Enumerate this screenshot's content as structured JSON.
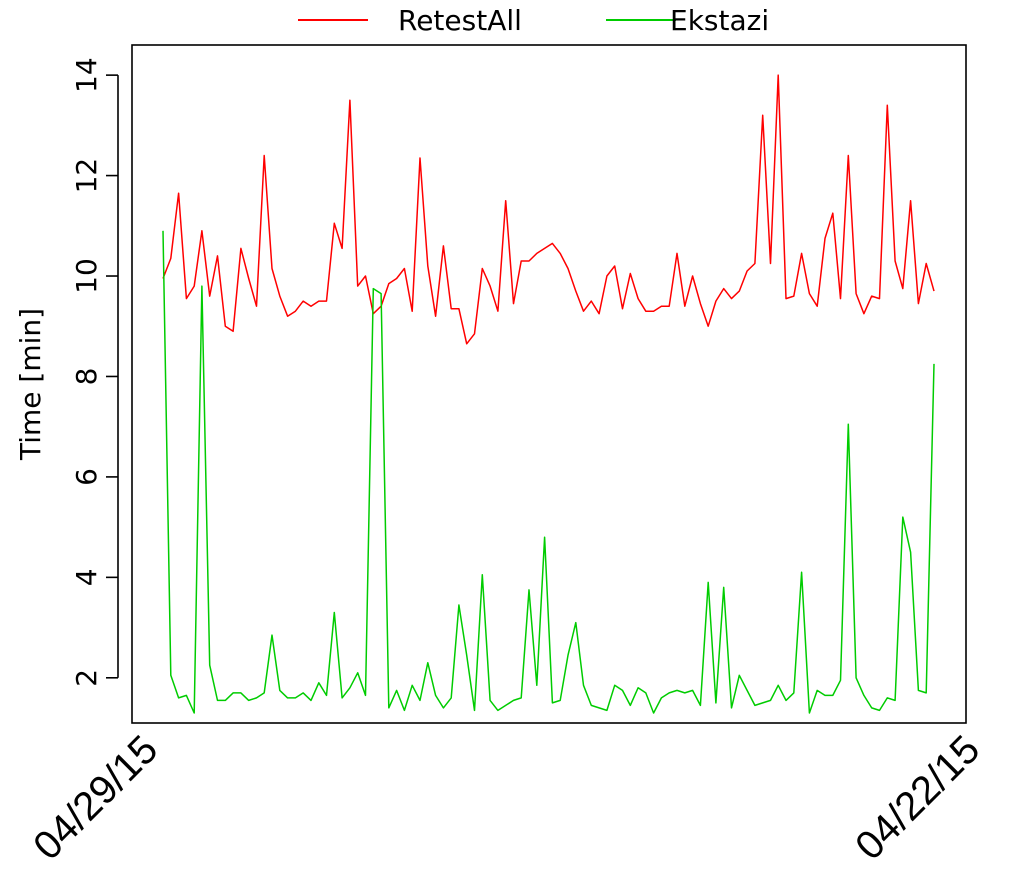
{
  "chart_data": {
    "type": "line",
    "title": "",
    "xlabel": "",
    "ylabel": "Time [min]",
    "x_tick_labels": [
      "04/29/15",
      "04/22/15"
    ],
    "ylim": [
      1.1,
      14.6
    ],
    "y_ticks": [
      2,
      4,
      6,
      8,
      10,
      12,
      14
    ],
    "grid": false,
    "legend_position": "top",
    "series": [
      {
        "name": "RetestAll",
        "color": "#ff0000",
        "values": [
          9.95,
          10.35,
          11.65,
          9.55,
          9.8,
          10.9,
          9.6,
          10.4,
          9.0,
          8.9,
          10.55,
          9.95,
          9.4,
          12.4,
          10.15,
          9.6,
          9.2,
          9.3,
          9.5,
          9.4,
          9.5,
          9.5,
          11.05,
          10.55,
          13.5,
          9.8,
          10.0,
          9.25,
          9.4,
          9.85,
          9.95,
          10.15,
          9.3,
          12.35,
          10.2,
          9.2,
          10.6,
          9.35,
          9.35,
          8.65,
          8.85,
          10.15,
          9.8,
          9.3,
          11.5,
          9.45,
          10.3,
          10.3,
          10.45,
          10.55,
          10.65,
          10.45,
          10.15,
          9.7,
          9.3,
          9.5,
          9.25,
          10.0,
          10.2,
          9.35,
          10.05,
          9.55,
          9.3,
          9.3,
          9.4,
          9.4,
          10.45,
          9.4,
          10.0,
          9.45,
          9.0,
          9.5,
          9.75,
          9.55,
          9.7,
          10.1,
          10.25,
          13.2,
          10.25,
          14.0,
          9.55,
          9.6,
          10.45,
          9.65,
          9.4,
          10.75,
          11.25,
          9.55,
          12.4,
          9.65,
          9.25,
          9.6,
          9.55,
          13.4,
          10.3,
          9.75,
          11.5,
          9.45,
          10.25,
          9.7
        ]
      },
      {
        "name": "Ekstazi",
        "color": "#00cc00",
        "values": [
          10.9,
          2.05,
          1.6,
          1.65,
          1.3,
          9.8,
          2.25,
          1.55,
          1.55,
          1.7,
          1.7,
          1.55,
          1.6,
          1.7,
          2.85,
          1.75,
          1.6,
          1.6,
          1.7,
          1.55,
          1.9,
          1.65,
          3.3,
          1.6,
          1.8,
          2.1,
          1.65,
          9.75,
          9.65,
          1.4,
          1.75,
          1.35,
          1.85,
          1.55,
          2.3,
          1.65,
          1.4,
          1.6,
          3.45,
          2.45,
          1.35,
          4.05,
          1.55,
          1.35,
          1.45,
          1.55,
          1.6,
          3.75,
          1.85,
          4.8,
          1.5,
          1.55,
          2.45,
          3.1,
          1.85,
          1.45,
          1.4,
          1.35,
          1.85,
          1.75,
          1.45,
          1.8,
          1.7,
          1.3,
          1.6,
          1.7,
          1.75,
          1.7,
          1.75,
          1.45,
          3.9,
          1.5,
          3.8,
          1.4,
          2.05,
          1.75,
          1.45,
          1.5,
          1.55,
          1.85,
          1.55,
          1.7,
          4.1,
          1.3,
          1.75,
          1.65,
          1.65,
          1.95,
          7.05,
          2.0,
          1.65,
          1.4,
          1.35,
          1.6,
          1.55,
          5.2,
          4.5,
          1.75,
          1.7,
          8.25
        ]
      }
    ]
  }
}
